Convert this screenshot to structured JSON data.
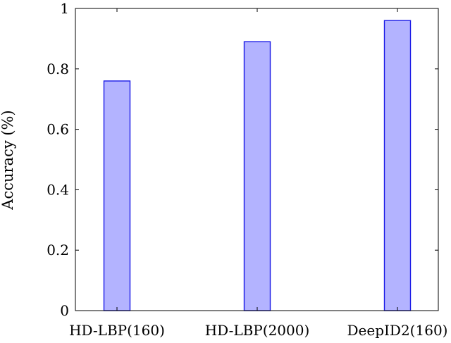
{
  "chart_data": {
    "type": "bar",
    "categories": [
      "HD-LBP(160)",
      "HD-LBP(2000)",
      "DeepID2(160)"
    ],
    "values": [
      0.76,
      0.89,
      0.96
    ],
    "title": "",
    "xlabel": "",
    "ylabel": "Accuracy (%)",
    "ylim": [
      0,
      1
    ],
    "yticks": [
      0,
      0.2,
      0.4,
      0.6,
      0.8,
      1
    ],
    "ytick_labels": [
      "0",
      "0.2",
      "0.4",
      "0.6",
      "0.8",
      "1"
    ],
    "grid": false,
    "legend": "none",
    "colors": {
      "bar_fill": "#b3b3ff",
      "bar_stroke": "#1a1ae6",
      "axis": "#000000"
    }
  }
}
